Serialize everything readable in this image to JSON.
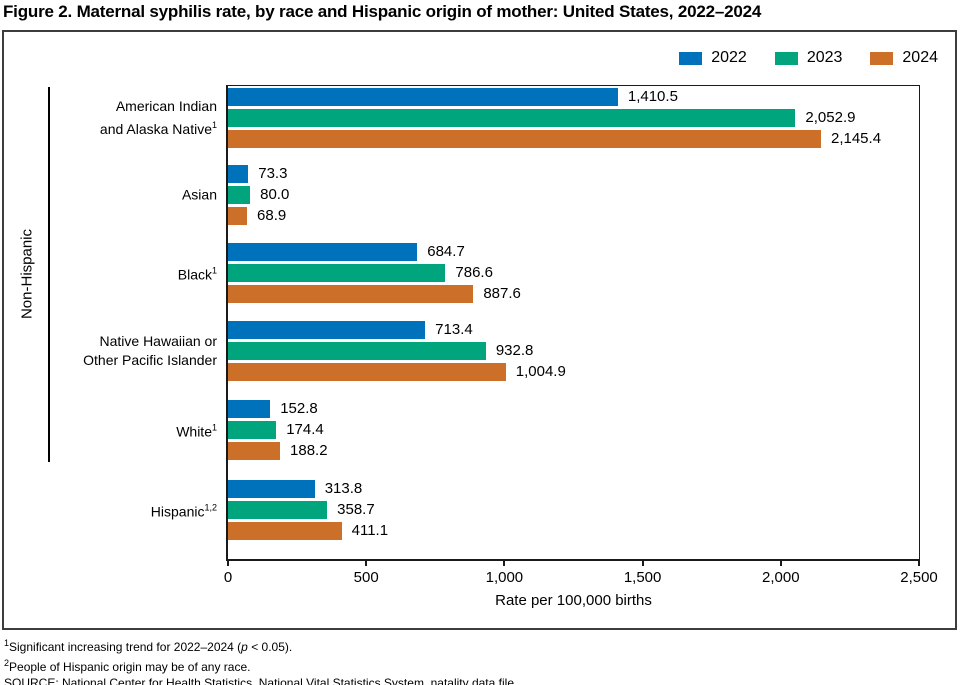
{
  "title": "Figure 2. Maternal syphilis rate, by race and Hispanic origin of mother: United States, 2022–2024",
  "chart_data": {
    "type": "bar",
    "orientation": "horizontal",
    "title": "Figure 2. Maternal syphilis rate, by race and Hispanic origin of mother: United States, 2022–2024",
    "xlabel": "Rate per 100,000 births",
    "ylabel": "",
    "xlim": [
      0,
      2500
    ],
    "xticks": [
      "0",
      "500",
      "1,000",
      "1,500",
      "2,000",
      "2,500"
    ],
    "grid": false,
    "legend_position": "top-right",
    "group_label": "Non-Hispanic",
    "categories": [
      {
        "lines": [
          "American Indian",
          "and Alaska Native"
        ],
        "sup": "1",
        "non_hispanic": true
      },
      {
        "lines": [
          "Asian"
        ],
        "sup": "",
        "non_hispanic": true
      },
      {
        "lines": [
          "Black"
        ],
        "sup": "1",
        "non_hispanic": true
      },
      {
        "lines": [
          "Native Hawaiian or",
          "Other Pacific Islander"
        ],
        "sup": "",
        "non_hispanic": true
      },
      {
        "lines": [
          "White"
        ],
        "sup": "1",
        "non_hispanic": true
      },
      {
        "lines": [
          "Hispanic"
        ],
        "sup": "1,2",
        "non_hispanic": false
      }
    ],
    "series": [
      {
        "name": "2022",
        "color": "#0072BC",
        "values": [
          1410.5,
          73.3,
          684.7,
          713.4,
          152.8,
          313.8
        ]
      },
      {
        "name": "2023",
        "color": "#00A57D",
        "values": [
          2052.9,
          80.0,
          786.6,
          932.8,
          174.4,
          358.7
        ]
      },
      {
        "name": "2024",
        "color": "#CC7029",
        "values": [
          2145.4,
          68.9,
          887.6,
          1004.9,
          188.2,
          411.1
        ]
      }
    ]
  },
  "footnotes": {
    "f1": {
      "sup": "1",
      "text_before": "Significant increasing trend for 2022–2024 (",
      "italic": "p",
      "text_after": " < 0.05)."
    },
    "f2": {
      "sup": "2",
      "text": "People of Hispanic origin may be of any race."
    },
    "source": "SOURCE: National Center for Health Statistics, National Vital Statistics System. natality data file."
  }
}
